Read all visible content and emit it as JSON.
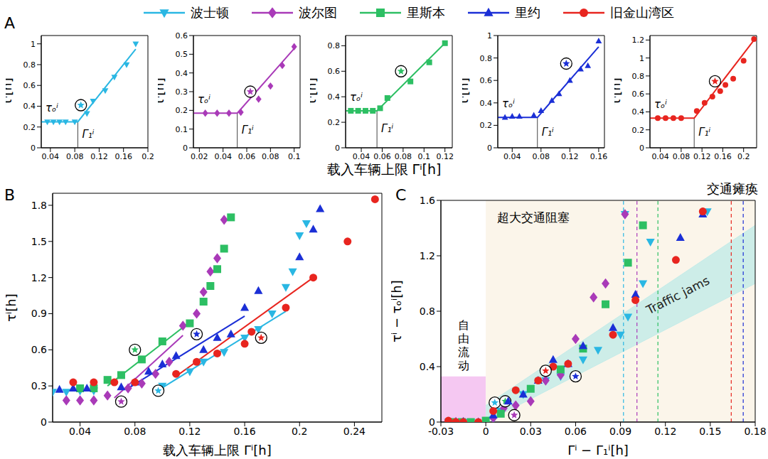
{
  "chart_data": [
    {
      "type": "scatter",
      "panel": "A",
      "xlabel": "载入车辆上限 Γⁱ[h]",
      "subplots": [
        {
          "ylabel": "τⁱ[h]",
          "xlim": [
            0.025,
            0.2
          ],
          "xticks": [
            0.04,
            0.08,
            0.12,
            0.16,
            0.2
          ],
          "ylim": [
            0,
            1.08
          ],
          "yticks": [
            0,
            0.2,
            0.4,
            0.6,
            0.8,
            1
          ],
          "annotations": [
            "τₒⁱ",
            "Γ₁ⁱ"
          ],
          "series": [
            {
              "name": "波士顿",
              "color": "#2ab7e3",
              "marker": "triangle-down",
              "x": [
                0.035,
                0.045,
                0.055,
                0.065,
                0.08,
                0.1,
                0.11,
                0.13,
                0.145,
                0.165,
                0.18
              ],
              "values": [
                0.25,
                0.25,
                0.25,
                0.25,
                0.25,
                0.33,
                0.45,
                0.55,
                0.68,
                0.8,
                1.0
              ],
              "fit": {
                "x": [
                  0.025,
                  0.085,
                  0.18
                ],
                "values": [
                  0.25,
                  0.25,
                  0.95
                ]
              },
              "highlight": {
                "x": 0.09,
                "y": 0.41,
                "marker": "circled-star"
              }
            }
          ]
        },
        {
          "ylabel": "τⁱ[h]",
          "xlim": [
            0.015,
            0.105
          ],
          "xticks": [
            0.02,
            0.04,
            0.06,
            0.08,
            0.1
          ],
          "ylim": [
            0,
            0.6
          ],
          "yticks": [
            0,
            0.1,
            0.2,
            0.3,
            0.4,
            0.5,
            0.6
          ],
          "annotations": [
            "τₒⁱ",
            "Γ₁ⁱ"
          ],
          "series": [
            {
              "name": "波尔图",
              "color": "#a93ab8",
              "marker": "diamond",
              "x": [
                0.025,
                0.035,
                0.045,
                0.055,
                0.07,
                0.08,
                0.09,
                0.1
              ],
              "values": [
                0.185,
                0.185,
                0.185,
                0.19,
                0.26,
                0.33,
                0.44,
                0.54
              ],
              "fit": {
                "x": [
                  0.015,
                  0.052,
                  0.1
                ],
                "values": [
                  0.185,
                  0.185,
                  0.53
                ]
              },
              "highlight": {
                "x": 0.063,
                "y": 0.3,
                "marker": "circled-star"
              }
            }
          ]
        },
        {
          "ylabel": "τⁱ[h]",
          "xlim": [
            0.025,
            0.127
          ],
          "xticks": [
            0.04,
            0.06,
            0.08,
            0.1,
            0.12
          ],
          "ylim": [
            0,
            0.88
          ],
          "yticks": [
            0,
            0.2,
            0.4,
            0.6,
            0.8
          ],
          "annotations": [
            "τₒⁱ",
            "Γ₁ⁱ"
          ],
          "series": [
            {
              "name": "里斯本",
              "color": "#2dbf63",
              "marker": "square",
              "x": [
                0.03,
                0.037,
                0.044,
                0.051,
                0.058,
                0.065,
                0.087,
                0.105,
                0.12
              ],
              "values": [
                0.29,
                0.29,
                0.29,
                0.29,
                0.31,
                0.39,
                0.52,
                0.67,
                0.82
              ],
              "fit": {
                "x": [
                  0.025,
                  0.055,
                  0.12
                ],
                "values": [
                  0.29,
                  0.29,
                  0.82
                ]
              },
              "highlight": {
                "x": 0.078,
                "y": 0.6,
                "marker": "circled-star"
              }
            }
          ]
        },
        {
          "ylabel": "τⁱ[h]",
          "xlim": [
            0.02,
            0.168
          ],
          "xticks": [
            0.04,
            0.08,
            0.12,
            0.16
          ],
          "ylim": [
            0,
            1
          ],
          "yticks": [
            0,
            0.2,
            0.4,
            0.6,
            0.8,
            1
          ],
          "annotations": [
            "τₒⁱ",
            "Γ₁ⁱ"
          ],
          "series": [
            {
              "name": "里约",
              "color": "#1b2fd6",
              "marker": "triangle",
              "x": [
                0.03,
                0.04,
                0.05,
                0.07,
                0.08,
                0.095,
                0.105,
                0.12,
                0.135,
                0.145,
                0.16
              ],
              "values": [
                0.27,
                0.28,
                0.28,
                0.29,
                0.33,
                0.42,
                0.48,
                0.6,
                0.7,
                0.73,
                0.95
              ],
              "fit": {
                "x": [
                  0.02,
                  0.075,
                  0.16
                ],
                "values": [
                  0.27,
                  0.27,
                  0.9
                ]
              },
              "highlight": {
                "x": 0.115,
                "y": 0.75,
                "marker": "circled-star"
              }
            }
          ]
        },
        {
          "ylabel": "τⁱ[h]",
          "xlim": [
            0.02,
            0.225
          ],
          "xticks": [
            0.04,
            0.08,
            0.12,
            0.16,
            0.2
          ],
          "ylim": [
            0,
            1.25
          ],
          "yticks": [
            0,
            0.2,
            0.4,
            0.6,
            0.8,
            1,
            1.2
          ],
          "annotations": [
            "τₒⁱ",
            "Γ₁ⁱ"
          ],
          "series": [
            {
              "name": "旧金山湾区",
              "color": "#e8251f",
              "marker": "circle",
              "x": [
                0.035,
                0.05,
                0.065,
                0.08,
                0.11,
                0.125,
                0.14,
                0.155,
                0.165,
                0.18,
                0.2,
                0.22
              ],
              "values": [
                0.33,
                0.33,
                0.33,
                0.33,
                0.41,
                0.5,
                0.57,
                0.63,
                0.7,
                0.77,
                0.97,
                1.21
              ],
              "fit": {
                "x": [
                  0.02,
                  0.105,
                  0.22
                ],
                "values": [
                  0.33,
                  0.33,
                  1.2
                ]
              },
              "highlight": {
                "x": 0.145,
                "y": 0.74,
                "marker": "circled-star"
              }
            }
          ]
        }
      ]
    },
    {
      "type": "scatter",
      "panel": "B",
      "legend": "top",
      "xlabel": "载入车辆上限 Γⁱ[h]",
      "ylabel": "τⁱ[h]",
      "xlim": [
        0.02,
        0.26
      ],
      "xticks": [
        0.04,
        0.08,
        0.12,
        0.16,
        0.2,
        0.24
      ],
      "ylim": [
        0,
        1.9
      ],
      "yticks": [
        0,
        0.3,
        0.6,
        0.9,
        1.2,
        1.5,
        1.8
      ],
      "series": [
        {
          "name": "波士顿",
          "color": "#2ab7e3",
          "marker": "triangle-down",
          "x": [
            0.02,
            0.03,
            0.04,
            0.05,
            0.1,
            0.12,
            0.13,
            0.145,
            0.16,
            0.17,
            0.18,
            0.19,
            0.195,
            0.2,
            0.205
          ],
          "values": [
            0.25,
            0.25,
            0.26,
            0.26,
            0.3,
            0.42,
            0.5,
            0.58,
            0.7,
            0.77,
            0.9,
            1.12,
            1.25,
            1.55,
            1.65
          ],
          "fit": {
            "x": [
              0.095,
              0.19
            ],
            "values": [
              0.25,
              0.92
            ]
          },
          "highlight": {
            "x": 0.097,
            "y": 0.26,
            "marker": "circled-star"
          }
        },
        {
          "name": "波尔图",
          "color": "#a93ab8",
          "marker": "diamond",
          "x": [
            0.03,
            0.04,
            0.05,
            0.06,
            0.075,
            0.085,
            0.095,
            0.105,
            0.115,
            0.125,
            0.13,
            0.135,
            0.14,
            0.145
          ],
          "values": [
            0.18,
            0.18,
            0.18,
            0.22,
            0.28,
            0.32,
            0.4,
            0.5,
            0.8,
            0.9,
            1.08,
            1.25,
            1.36,
            1.68
          ],
          "fit": {
            "x": [
              0.065,
              0.115
            ],
            "values": [
              0.2,
              0.72
            ]
          },
          "highlight": {
            "x": 0.07,
            "y": 0.17,
            "marker": "circled-star"
          }
        },
        {
          "name": "里斯本",
          "color": "#2dbf63",
          "marker": "square",
          "x": [
            0.04,
            0.05,
            0.06,
            0.07,
            0.085,
            0.1,
            0.12,
            0.13,
            0.135,
            0.14,
            0.145,
            0.15
          ],
          "values": [
            0.28,
            0.28,
            0.35,
            0.39,
            0.52,
            0.67,
            0.82,
            1.0,
            1.13,
            1.27,
            1.44,
            1.7
          ],
          "fit": {
            "x": [
              0.06,
              0.12
            ],
            "values": [
              0.3,
              0.83
            ]
          },
          "highlight": {
            "x": 0.08,
            "y": 0.6,
            "marker": "circled-star"
          }
        },
        {
          "name": "里约",
          "color": "#1b2fd6",
          "marker": "triangle",
          "x": [
            0.025,
            0.035,
            0.045,
            0.07,
            0.08,
            0.09,
            0.1,
            0.11,
            0.13,
            0.14,
            0.15,
            0.16,
            0.17,
            0.2,
            0.21,
            0.215
          ],
          "values": [
            0.27,
            0.28,
            0.28,
            0.29,
            0.33,
            0.42,
            0.48,
            0.55,
            0.6,
            0.7,
            0.73,
            0.95,
            1.09,
            1.37,
            1.6,
            1.77
          ],
          "fit": {
            "x": [
              0.075,
              0.16
            ],
            "values": [
              0.28,
              0.88
            ]
          },
          "highlight": {
            "x": 0.125,
            "y": 0.73,
            "marker": "circled-star"
          }
        },
        {
          "name": "旧金山湾区",
          "color": "#e8251f",
          "marker": "circle",
          "x": [
            0.035,
            0.05,
            0.065,
            0.08,
            0.11,
            0.125,
            0.14,
            0.16,
            0.165,
            0.19,
            0.21,
            0.235,
            0.255
          ],
          "values": [
            0.33,
            0.33,
            0.33,
            0.33,
            0.4,
            0.5,
            0.57,
            0.65,
            0.75,
            0.95,
            1.2,
            1.5,
            1.85
          ],
          "fit": {
            "x": [
              0.11,
              0.21
            ],
            "values": [
              0.38,
              1.2
            ]
          },
          "highlight": {
            "x": 0.172,
            "y": 0.7,
            "marker": "circled-star"
          }
        }
      ]
    },
    {
      "type": "scatter",
      "panel": "C",
      "xlabel": "Γⁱ − Γ₁ⁱ[h]",
      "ylabel": "τⁱ − τₒⁱ[h]",
      "xlim": [
        -0.03,
        0.18
      ],
      "xticks": [
        -0.03,
        0,
        0.03,
        0.06,
        0.09,
        0.12,
        0.15,
        0.18
      ],
      "ylim": [
        0,
        1.6
      ],
      "yticks": [
        0,
        0.4,
        0.8,
        1.2,
        1.6
      ],
      "annotation": "交通瘫痪",
      "regions": [
        {
          "label": "自由流动",
          "x": [
            -0.03,
            0
          ],
          "y": [
            0,
            0.33
          ],
          "color": "#f5c8f2"
        },
        {
          "label": "超大交通阻塞",
          "x": [
            0,
            0.18
          ],
          "y": [
            0,
            1.6
          ],
          "color": "#fbf5ea"
        }
      ],
      "band": {
        "label": "Traffic jams",
        "x": [
          0,
          0.18
        ],
        "lower": [
          0,
          1.0
        ],
        "upper": [
          0.12,
          1.42
        ],
        "color": "#c4ebe8"
      },
      "series": [
        {
          "name": "波士顿",
          "color": "#2ab7e3",
          "marker": "triangle-down",
          "threshold": 0.092,
          "x": [
            -0.025,
            -0.02,
            -0.015,
            -0.01,
            0.005,
            0.01,
            0.025,
            0.04,
            0.05,
            0.065,
            0.075,
            0.09,
            0.093,
            0.095,
            0.105,
            0.11,
            0.148
          ],
          "values": [
            0,
            0,
            0,
            0,
            0.02,
            0.08,
            0.2,
            0.3,
            0.33,
            0.45,
            0.52,
            0.63,
            1.5,
            0.76,
            1.0,
            1.3,
            1.52
          ],
          "highlight": {
            "x": 0.006,
            "y": 0.14,
            "marker": "circled-star"
          }
        },
        {
          "name": "波尔图",
          "color": "#a93ab8",
          "marker": "diamond",
          "threshold": 0.101,
          "x": [
            -0.025,
            -0.02,
            -0.015,
            0,
            0.005,
            0.012,
            0.02,
            0.03,
            0.04,
            0.05,
            0.06,
            0.072,
            0.08,
            0.093
          ],
          "values": [
            0,
            0,
            0,
            0,
            0.03,
            0.1,
            0.12,
            0.15,
            0.3,
            0.34,
            0.6,
            0.9,
            1.0,
            1.5
          ],
          "highlight": {
            "x": 0.019,
            "y": 0.05,
            "marker": "circled-star"
          }
        },
        {
          "name": "里斯本",
          "color": "#2dbf63",
          "marker": "square",
          "threshold": 0.115,
          "x": [
            -0.023,
            -0.016,
            -0.01,
            0,
            0.01,
            0.03,
            0.05,
            0.065,
            0.08,
            0.095,
            0.105
          ],
          "values": [
            0,
            0,
            0,
            0.01,
            0.06,
            0.24,
            0.38,
            0.53,
            0.85,
            1.15,
            1.42
          ],
          "highlight": {
            "x": 0.013,
            "y": 0.15,
            "marker": "circled-star"
          }
        },
        {
          "name": "里约",
          "color": "#1b2fd6",
          "marker": "triangle",
          "threshold": 0.172,
          "x": [
            -0.025,
            -0.015,
            -0.005,
            0.005,
            0.015,
            0.025,
            0.035,
            0.045,
            0.055,
            0.065,
            0.085,
            0.1,
            0.13,
            0.145
          ],
          "values": [
            0,
            0,
            0,
            0.05,
            0.15,
            0.2,
            0.3,
            0.45,
            0.42,
            0.55,
            0.68,
            0.92,
            1.33,
            1.5
          ],
          "highlight": {
            "x": 0.06,
            "y": 0.33,
            "marker": "circled-star"
          }
        },
        {
          "name": "旧金山湾区",
          "color": "#e8251f",
          "marker": "circle",
          "threshold": 0.164,
          "x": [
            -0.025,
            -0.02,
            -0.015,
            -0.005,
            0.005,
            0.02,
            0.035,
            0.045,
            0.055,
            0.085,
            0.1,
            0.127,
            0.145
          ],
          "values": [
            0.01,
            0,
            0,
            0,
            0.08,
            0.23,
            0.3,
            0.4,
            0.42,
            0.63,
            0.88,
            1.17,
            1.52
          ],
          "highlight": {
            "x": 0.04,
            "y": 0.37,
            "marker": "circled-star"
          }
        }
      ]
    }
  ]
}
